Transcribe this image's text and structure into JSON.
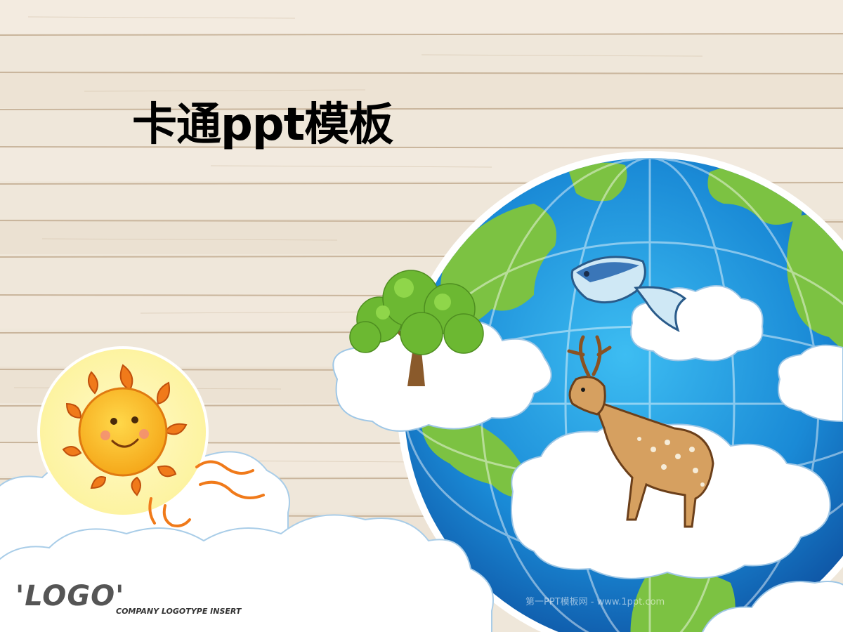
{
  "slide": {
    "title": "卡通ppt模板",
    "logo": "'LOGO'",
    "logo_tagline": "COMPANY LOGOTYPE INSERT",
    "watermark": "第一PPT模板网 - www.1ppt.com"
  },
  "illustration": {
    "background": "wood-planks",
    "elements": [
      "sun",
      "earth-globe",
      "tree",
      "fish",
      "deer",
      "clouds"
    ]
  },
  "colors": {
    "wood": "#efe6d8",
    "globe_ocean": "#1f8fd8",
    "land": "#7cc242",
    "cloud": "#ffffff",
    "sun": "#f7a21b"
  }
}
